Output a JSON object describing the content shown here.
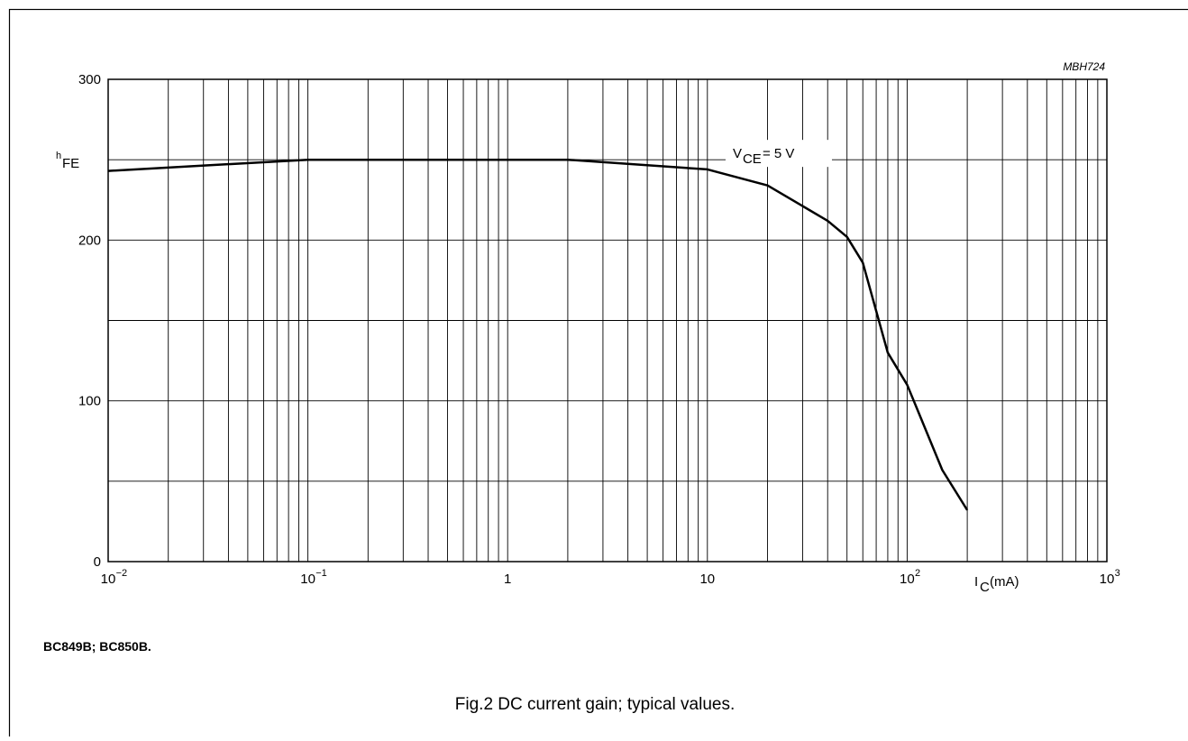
{
  "figure": {
    "ref_code": "MBH724",
    "device_note": "BC849B; BC850B.",
    "caption": "Fig.2  DC current gain; typical values."
  },
  "chart_data": {
    "type": "line",
    "title": "",
    "x_scale": "log",
    "xlim": [
      0.01,
      1000
    ],
    "ylim": [
      0,
      300
    ],
    "grid": true,
    "ylabel": {
      "main": "h",
      "sub": "FE"
    },
    "xlabel": {
      "main": "I",
      "sub": "C",
      "suffix": " (mA)"
    },
    "y_ticks": [
      {
        "value": 0,
        "label": "0"
      },
      {
        "value": 100,
        "label": "100"
      },
      {
        "value": 200,
        "label": "200"
      },
      {
        "value": 300,
        "label": "300"
      }
    ],
    "x_ticks": [
      {
        "value": 0.01,
        "base": "10",
        "exp": "−2"
      },
      {
        "value": 0.1,
        "base": "10",
        "exp": "−1"
      },
      {
        "value": 1,
        "base": "1",
        "exp": ""
      },
      {
        "value": 10,
        "base": "10",
        "exp": ""
      },
      {
        "value": 100,
        "base": "10",
        "exp": "2"
      },
      {
        "value": 1000,
        "base": "10",
        "exp": "3"
      }
    ],
    "annotation": {
      "main": "V",
      "sub": "CE",
      "suffix": " = 5 V",
      "x": 25,
      "y": 250
    },
    "series": [
      {
        "x": [
          0.01,
          0.1,
          2,
          10,
          20,
          40,
          50,
          60,
          80,
          100,
          150,
          200
        ],
        "y": [
          243,
          250,
          250,
          244,
          234,
          212,
          202,
          186,
          130,
          110,
          57,
          32
        ]
      }
    ]
  }
}
